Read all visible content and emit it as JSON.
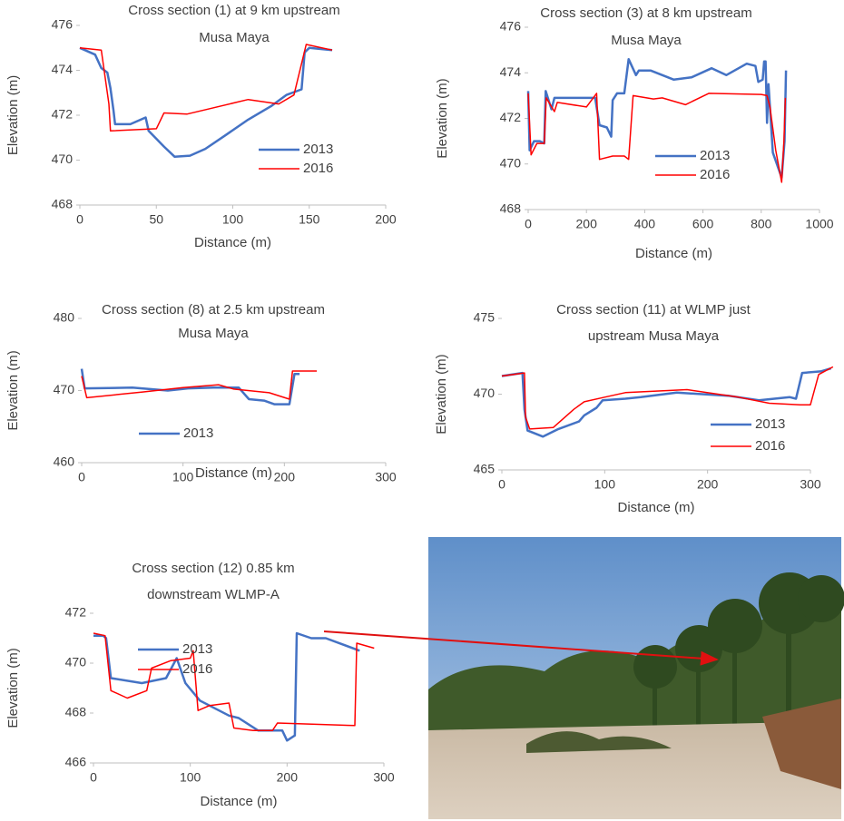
{
  "chart_data": [
    {
      "type": "line",
      "title": "Cross section (1) at 9 km upstream",
      "subtitle": "Musa Maya",
      "x_label": "Distance (m)",
      "y_label": "Elevation (m)",
      "xlim": [
        0,
        200
      ],
      "xticks": [
        0,
        50,
        100,
        150,
        200
      ],
      "ylim": [
        468,
        476
      ],
      "yticks": [
        468,
        470,
        472,
        474,
        476
      ],
      "series": [
        {
          "name": "2013",
          "color": "#4472c4",
          "x": [
            0,
            10,
            14,
            18,
            20,
            22,
            23,
            33,
            43,
            45,
            55,
            62,
            72,
            82,
            95,
            110,
            125,
            135,
            145,
            147,
            150,
            165
          ],
          "values": [
            475,
            474.7,
            474.1,
            473.9,
            473.2,
            472.2,
            471.6,
            471.6,
            471.9,
            471.3,
            470.6,
            470.15,
            470.2,
            470.5,
            471.1,
            471.8,
            472.4,
            472.9,
            473.15,
            474.8,
            475,
            474.9
          ]
        },
        {
          "name": "2016",
          "color": "#ff0000",
          "x": [
            0,
            14,
            19,
            20,
            50,
            55,
            70,
            110,
            130,
            140,
            148,
            165
          ],
          "values": [
            475,
            474.9,
            472.5,
            471.3,
            471.4,
            472.1,
            472.05,
            472.7,
            472.5,
            472.9,
            475.15,
            474.9
          ]
        }
      ]
    },
    {
      "type": "line",
      "title": "Cross section (3) at 8 km upstream",
      "subtitle": "Musa Maya",
      "x_label": "Distance (m)",
      "y_label": "Elevation (m)",
      "xlim": [
        0,
        1000
      ],
      "xticks": [
        0,
        200,
        400,
        600,
        800,
        1000
      ],
      "ylim": [
        468,
        476
      ],
      "yticks": [
        468,
        470,
        472,
        474,
        476
      ],
      "series": [
        {
          "name": "2013",
          "color": "#4472c4",
          "x": [
            0,
            5,
            20,
            40,
            55,
            60,
            80,
            90,
            230,
            245,
            270,
            285,
            290,
            305,
            330,
            345,
            370,
            380,
            420,
            500,
            560,
            630,
            680,
            750,
            780,
            790,
            805,
            810,
            815,
            820,
            825,
            840,
            870,
            880,
            885
          ],
          "values": [
            473.2,
            470.6,
            471,
            471,
            470.9,
            473.2,
            472.4,
            472.9,
            472.9,
            471.7,
            471.6,
            471.2,
            472.8,
            473.1,
            473.1,
            474.6,
            473.9,
            474.1,
            474.1,
            473.7,
            473.8,
            474.2,
            473.9,
            474.4,
            474.3,
            473.6,
            473.7,
            474.5,
            474.5,
            471.8,
            473.5,
            470.5,
            469.4,
            471,
            474.1
          ]
        },
        {
          "name": "2016",
          "color": "#ff0000",
          "x": [
            0,
            10,
            30,
            55,
            62,
            90,
            100,
            200,
            235,
            245,
            290,
            330,
            345,
            360,
            430,
            460,
            540,
            620,
            800,
            820,
            830,
            850,
            870,
            878,
            883
          ],
          "values": [
            473.1,
            470.4,
            470.9,
            470.9,
            472.9,
            472.3,
            472.7,
            472.5,
            473.1,
            470.2,
            470.35,
            470.35,
            470.2,
            473,
            472.85,
            472.9,
            472.6,
            473.1,
            473.05,
            473,
            472.5,
            470.6,
            469.2,
            471,
            472.9
          ]
        }
      ]
    },
    {
      "type": "line",
      "title": "Cross section (8) at 2.5 km upstream",
      "subtitle": "Musa Maya",
      "x_label": "Distance (m)",
      "y_label": "Elevation (m)",
      "xlim": [
        0,
        300
      ],
      "xticks": [
        0,
        100,
        200,
        300
      ],
      "ylim": [
        460,
        480
      ],
      "yticks": [
        460,
        470,
        480
      ],
      "series": [
        {
          "name": "2013",
          "color": "#4472c4",
          "x": [
            0,
            3,
            50,
            85,
            105,
            130,
            155,
            165,
            180,
            190,
            205,
            210,
            215
          ],
          "values": [
            473,
            470.3,
            470.4,
            470,
            470.3,
            470.4,
            470.4,
            468.8,
            468.6,
            468.1,
            468.1,
            472.3,
            472.3
          ]
        },
        {
          "color": "#ff0000",
          "x": [
            0,
            5,
            60,
            100,
            135,
            150,
            185,
            205,
            208,
            232
          ],
          "values": [
            472,
            469,
            469.8,
            470.4,
            470.8,
            470.2,
            469.7,
            468.8,
            472.7,
            472.7
          ]
        }
      ]
    },
    {
      "type": "line",
      "title": "Cross section (11) at WLMP just",
      "subtitle": "upstream Musa Maya",
      "x_label": "Distance (m)",
      "y_label": "Elevation (m)",
      "xlim": [
        0,
        300
      ],
      "xticks": [
        0,
        100,
        200,
        300
      ],
      "ylim": [
        465,
        475
      ],
      "yticks": [
        465,
        470,
        475
      ],
      "series": [
        {
          "name": "2013",
          "color": "#4472c4",
          "x": [
            0,
            20,
            22,
            25,
            40,
            55,
            75,
            80,
            92,
            98,
            120,
            135,
            170,
            220,
            250,
            280,
            286,
            292,
            310,
            320
          ],
          "values": [
            471.2,
            471.4,
            469,
            467.6,
            467.2,
            467.7,
            468.2,
            468.6,
            469.1,
            469.6,
            469.7,
            469.8,
            470.1,
            469.9,
            469.6,
            469.8,
            469.7,
            471.4,
            471.5,
            471.7
          ]
        },
        {
          "name": "2016",
          "color": "#ff0000",
          "x": [
            0,
            22,
            23,
            27,
            50,
            70,
            80,
            100,
            120,
            180,
            230,
            260,
            290,
            300,
            308,
            322
          ],
          "values": [
            471.2,
            471.4,
            468.5,
            467.7,
            467.8,
            469,
            469.5,
            469.8,
            470.1,
            470.3,
            469.8,
            469.4,
            469.3,
            469.3,
            471.3,
            471.8
          ]
        }
      ]
    },
    {
      "type": "line",
      "title": "Cross section (12) 0.85 km",
      "subtitle": "downstream WLMP-A",
      "x_label": "Distance (m)",
      "y_label": "Elevation (m)",
      "xlim": [
        0,
        300
      ],
      "xticks": [
        0,
        100,
        200,
        300
      ],
      "ylim": [
        466,
        472
      ],
      "yticks": [
        466,
        468,
        470,
        472
      ],
      "series": [
        {
          "name": "2013",
          "color": "#4472c4",
          "x": [
            0,
            10,
            13,
            18,
            50,
            75,
            86,
            95,
            110,
            140,
            150,
            170,
            195,
            200,
            208,
            210,
            225,
            240,
            275
          ],
          "values": [
            471.1,
            471.1,
            471,
            469.4,
            469.2,
            469.4,
            470.2,
            469.2,
            468.5,
            467.9,
            467.8,
            467.3,
            467.3,
            466.9,
            467.1,
            471.2,
            471,
            471,
            470.5
          ]
        },
        {
          "name": "2016",
          "color": "#ff0000",
          "x": [
            0,
            12,
            18,
            35,
            55,
            60,
            80,
            100,
            103,
            108,
            120,
            140,
            145,
            165,
            185,
            190,
            270,
            272,
            290
          ],
          "values": [
            471.2,
            471.1,
            468.9,
            468.6,
            468.9,
            469.8,
            470.1,
            470.2,
            470.5,
            468.1,
            468.3,
            468.4,
            467.4,
            467.3,
            467.3,
            467.6,
            467.5,
            470.8,
            470.6
          ]
        }
      ]
    }
  ]
}
